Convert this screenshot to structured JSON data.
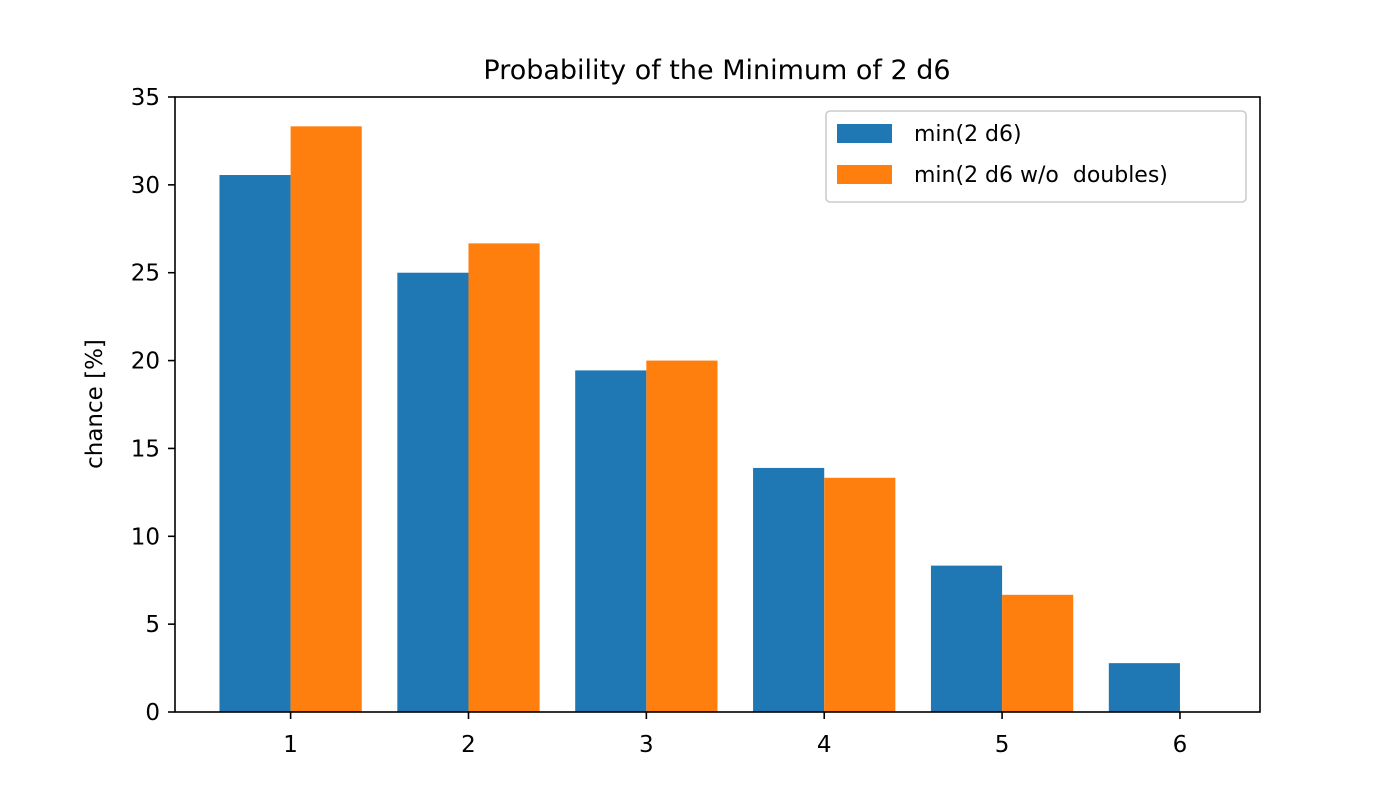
{
  "chart_data": {
    "type": "bar",
    "title": "Probability of the Minimum of 2 d6",
    "xlabel": "",
    "ylabel": "chance [%]",
    "categories": [
      "1",
      "2",
      "3",
      "4",
      "5",
      "6"
    ],
    "series": [
      {
        "name": "min(2 d6)",
        "color": "#1f77b4",
        "values": [
          30.56,
          25.0,
          19.44,
          13.89,
          8.33,
          2.78
        ]
      },
      {
        "name": "min(2 d6 w/o  doubles)",
        "color": "#ff7f0e",
        "values": [
          33.33,
          26.67,
          20.0,
          13.33,
          6.67,
          0.0
        ]
      }
    ],
    "ylim": [
      0,
      35
    ],
    "yticks": [
      "0",
      "5",
      "10",
      "15",
      "20",
      "25",
      "30",
      "35"
    ],
    "xticks": [
      "1",
      "2",
      "3",
      "4",
      "5",
      "6"
    ],
    "grid": false,
    "legend_position": "top-right"
  }
}
